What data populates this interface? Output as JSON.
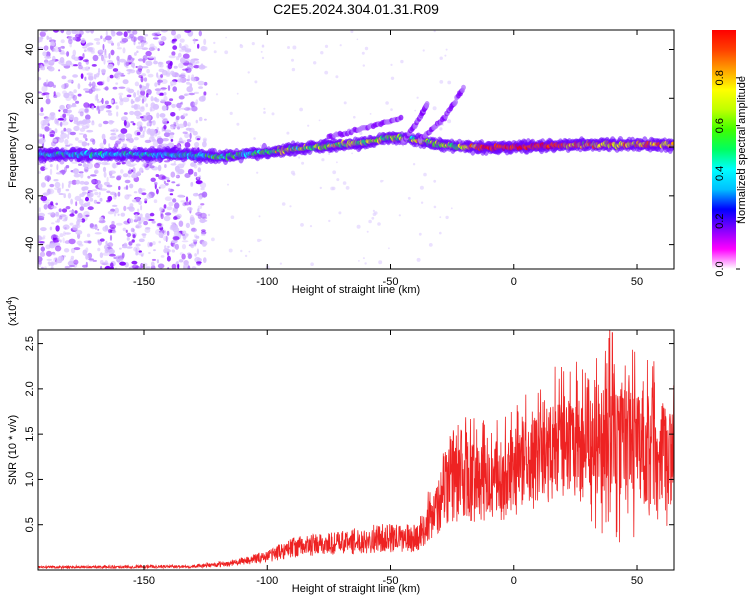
{
  "title": "C2E5.2024.304.01.31.R09",
  "chart_data": [
    {
      "type": "heatmap",
      "xlabel": "Height of straight line (km)",
      "ylabel": "Frequency (Hz)",
      "xlim": [
        -193,
        65
      ],
      "ylim": [
        -50,
        48
      ],
      "xticks": [
        -150,
        -100,
        -50,
        0,
        50
      ],
      "yticks": [
        -40,
        -20,
        0,
        20,
        40
      ],
      "colorbar": {
        "label": "Normalized spectral amplitude",
        "range": [
          0,
          1
        ],
        "ticks": [
          "0.0",
          "0.2",
          "0.4",
          "0.6",
          "0.8"
        ],
        "tick_values": [
          0.0,
          0.2,
          0.4,
          0.6,
          0.8
        ],
        "colors": [
          "#ffffff",
          "#ff00ff",
          "#8000ff",
          "#0000ff",
          "#00c0ff",
          "#00ffff",
          "#00ff60",
          "#40ff00",
          "#c0ff00",
          "#ffff00",
          "#ffa000",
          "#ff4000",
          "#ff0000"
        ]
      },
      "features": {
        "noise_region_x": [
          -193,
          -125
        ],
        "ridge": [
          {
            "x": -135,
            "f": -3
          },
          {
            "x": -120,
            "f": -4
          },
          {
            "x": -100,
            "f": -2
          },
          {
            "x": -80,
            "f": 0
          },
          {
            "x": -60,
            "f": 2
          },
          {
            "x": -50,
            "f": 4
          },
          {
            "x": -40,
            "f": 3
          },
          {
            "x": -30,
            "f": 1
          },
          {
            "x": -20,
            "f": 0
          },
          {
            "x": 0,
            "f": 0
          },
          {
            "x": 30,
            "f": 1
          },
          {
            "x": 65,
            "f": 1
          }
        ],
        "branches": [
          [
            {
              "x": -45,
              "f": 2
            },
            {
              "x": -38,
              "f": 12
            },
            {
              "x": -35,
              "f": 18
            }
          ],
          [
            {
              "x": -38,
              "f": 3
            },
            {
              "x": -28,
              "f": 12
            },
            {
              "x": -20,
              "f": 25
            }
          ],
          [
            {
              "x": -75,
              "f": 4
            },
            {
              "x": -60,
              "f": 8
            },
            {
              "x": -45,
              "f": 12
            }
          ]
        ],
        "peak_region_x": [
          -15,
          20
        ]
      }
    },
    {
      "type": "line",
      "xlabel": "Height of straight line (km)",
      "ylabel": "SNR (10 * v/v)",
      "y_multiplier": "(x10",
      "y_multiplier_exp": "4",
      "y_multiplier_close": ")",
      "xlim": [
        -193,
        65
      ],
      "ylim": [
        0,
        2.65
      ],
      "xticks": [
        -150,
        -100,
        -50,
        0,
        50
      ],
      "yticks": [
        0.5,
        1.0,
        1.5,
        2.0,
        2.5
      ],
      "ytick_labels": [
        "0.5",
        "1.0",
        "1.5",
        "2.0",
        "2.5"
      ],
      "series_color": "#ee2222",
      "envelope": [
        {
          "x": -193,
          "y": 0.03
        },
        {
          "x": -130,
          "y": 0.04
        },
        {
          "x": -115,
          "y": 0.07
        },
        {
          "x": -100,
          "y": 0.15
        },
        {
          "x": -90,
          "y": 0.25
        },
        {
          "x": -70,
          "y": 0.3
        },
        {
          "x": -55,
          "y": 0.35
        },
        {
          "x": -40,
          "y": 0.35
        },
        {
          "x": -32,
          "y": 0.6
        },
        {
          "x": -28,
          "y": 0.9
        },
        {
          "x": -20,
          "y": 1.0
        },
        {
          "x": -10,
          "y": 0.9
        },
        {
          "x": 0,
          "y": 1.0
        },
        {
          "x": 10,
          "y": 1.2
        },
        {
          "x": 20,
          "y": 1.3
        },
        {
          "x": 30,
          "y": 1.3
        },
        {
          "x": 38,
          "y": 1.6
        },
        {
          "x": 45,
          "y": 1.4
        },
        {
          "x": 55,
          "y": 1.3
        },
        {
          "x": 65,
          "y": 1.2
        }
      ],
      "peak": {
        "x": 40,
        "y": 2.62
      }
    }
  ]
}
